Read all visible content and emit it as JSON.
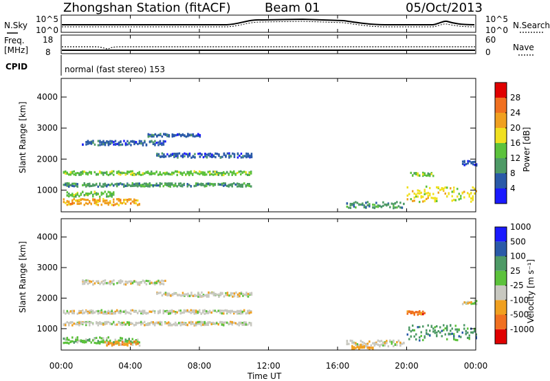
{
  "header": {
    "station": "Zhongshan Station (fitACF)",
    "beam": "Beam 01",
    "date": "05/Oct/2013"
  },
  "top_panels": {
    "noise_left": "N.Sky",
    "noise_right": "N.Search",
    "noise_ticks_left": [
      "10^5",
      "10^0"
    ],
    "noise_ticks_right": [
      "10^5",
      "10^0"
    ],
    "freq_label_1": "Freq.",
    "freq_label_2": "[MHz]",
    "freq_ticks": [
      "18",
      "8"
    ],
    "nave_label": "Nave",
    "nave_ticks": [
      "60",
      "0"
    ],
    "cpid_label": "CPID",
    "cpid_text": "normal (fast stereo) 153"
  },
  "colors": {
    "power": [
      "#1a1aff",
      "#2a5aa8",
      "#4e9a66",
      "#5cc23c",
      "#f0e020",
      "#f0a020",
      "#f07020",
      "#e00000"
    ],
    "velocity": [
      "#e00000",
      "#f07020",
      "#f0a020",
      "#c8c8c0",
      "#5cc23c",
      "#4e9a66",
      "#2a5aa8",
      "#1a1aff"
    ]
  },
  "chart_data": [
    {
      "type": "heatmap",
      "name": "power",
      "ylabel": "Slant Range [km]",
      "xlabel": "",
      "x_ticks": [
        "00:00",
        "04:00",
        "08:00",
        "12:00",
        "16:00",
        "20:00",
        "00:00"
      ],
      "y_ticks": [
        1000,
        2000,
        3000,
        4000
      ],
      "ylim": [
        300,
        4600
      ],
      "xlim_hours": [
        0,
        24
      ],
      "colorbar_label": "Power [dB]",
      "colorbar_ticks": [
        "4",
        "8",
        "12",
        "16",
        "20",
        "24",
        "28"
      ],
      "features": [
        {
          "t0": 0.1,
          "t1": 11.0,
          "r": 1580,
          "h": 120,
          "level": 3
        },
        {
          "t0": 0.1,
          "t1": 11.0,
          "r": 1200,
          "h": 110,
          "level": 2
        },
        {
          "t0": 0.1,
          "t1": 4.5,
          "r": 650,
          "h": 200,
          "level": 5
        },
        {
          "t0": 0.3,
          "t1": 3.0,
          "r": 900,
          "h": 160,
          "level": 3
        },
        {
          "t0": 1.2,
          "t1": 6.0,
          "r": 2550,
          "h": 140,
          "level": 1
        },
        {
          "t0": 5.5,
          "t1": 11.0,
          "r": 2150,
          "h": 140,
          "level": 1
        },
        {
          "t0": 5.0,
          "t1": 8.0,
          "r": 2800,
          "h": 90,
          "level": 1
        },
        {
          "t0": 16.5,
          "t1": 19.8,
          "r": 550,
          "h": 200,
          "level": 2
        },
        {
          "t0": 20.0,
          "t1": 24.0,
          "r": 900,
          "h": 500,
          "level": 4
        },
        {
          "t0": 20.2,
          "t1": 21.5,
          "r": 1550,
          "h": 120,
          "level": 3
        },
        {
          "t0": 23.2,
          "t1": 24.0,
          "r": 1900,
          "h": 150,
          "level": 1
        }
      ]
    },
    {
      "type": "heatmap",
      "name": "velocity",
      "ylabel": "Slant Range [km]",
      "xlabel": "Time UT",
      "x_ticks": [
        "00:00",
        "04:00",
        "08:00",
        "12:00",
        "16:00",
        "20:00",
        "00:00"
      ],
      "y_ticks": [
        1000,
        2000,
        3000,
        4000
      ],
      "ylim": [
        300,
        4600
      ],
      "xlim_hours": [
        0,
        24
      ],
      "colorbar_label": "Velocity [m s⁻¹]",
      "colorbar_ticks": [
        "-1000",
        "-500",
        "-100",
        "-25",
        "25",
        "100",
        "500",
        "1000"
      ],
      "features": [
        {
          "t0": 0.1,
          "t1": 11.0,
          "r": 1580,
          "h": 120,
          "level": 3
        },
        {
          "t0": 0.1,
          "t1": 11.0,
          "r": 1200,
          "h": 110,
          "level": 3
        },
        {
          "t0": 0.1,
          "t1": 4.5,
          "r": 650,
          "h": 200,
          "level": 4
        },
        {
          "t0": 2.5,
          "t1": 4.5,
          "r": 550,
          "h": 150,
          "level": 2
        },
        {
          "t0": 1.2,
          "t1": 6.0,
          "r": 2550,
          "h": 140,
          "level": 3
        },
        {
          "t0": 5.5,
          "t1": 11.0,
          "r": 2150,
          "h": 140,
          "level": 3
        },
        {
          "t0": 16.5,
          "t1": 19.8,
          "r": 550,
          "h": 200,
          "level": 3
        },
        {
          "t0": 16.8,
          "t1": 18.0,
          "r": 420,
          "h": 100,
          "level": 2
        },
        {
          "t0": 20.0,
          "t1": 24.0,
          "r": 900,
          "h": 500,
          "level": 5
        },
        {
          "t0": 20.0,
          "t1": 21.0,
          "r": 1550,
          "h": 120,
          "level": 1
        },
        {
          "t0": 23.2,
          "t1": 24.0,
          "r": 1900,
          "h": 150,
          "level": 3
        }
      ]
    }
  ]
}
